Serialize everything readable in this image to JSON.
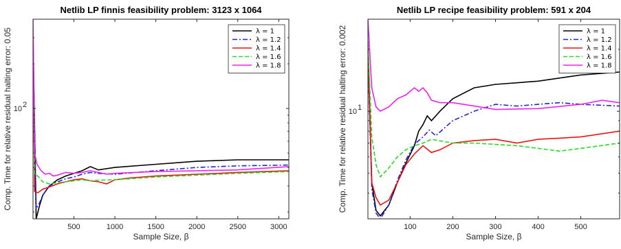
{
  "chart_data": [
    {
      "type": "line",
      "title": "Netlib LP finnis feasibility problem: 3123 x 1064",
      "xlabel": "Sample Size, β",
      "ylabel": "Comp. Time for relative residual halting error: 0.05",
      "xlim": [
        1,
        3123
      ],
      "ylim": [
        18,
        400
      ],
      "yscale": "log",
      "xticks": [
        500,
        1000,
        1500,
        2000,
        2500,
        3000
      ],
      "yticks": [
        {
          "value": 100,
          "label": "10",
          "exp": "2"
        }
      ],
      "grid": false,
      "legend_position": "top-right",
      "series": [
        {
          "name": "λ = 1",
          "color": "#000000",
          "dash": "solid",
          "x": [
            1,
            40,
            80,
            120,
            200,
            300,
            400,
            500,
            600,
            700,
            800,
            1000,
            1500,
            2000,
            2500,
            3123
          ],
          "y": [
            320,
            18,
            22,
            26,
            30,
            33,
            35,
            36.5,
            38,
            40.5,
            38.5,
            40,
            42,
            44,
            45,
            45
          ]
        },
        {
          "name": "λ = 1.2",
          "color": "#1f1fe0",
          "dash": "dashdot",
          "x": [
            1,
            40,
            80,
            120,
            200,
            300,
            400,
            500,
            600,
            700,
            800,
            1000,
            1500,
            2000,
            2500,
            3123
          ],
          "y": [
            250,
            21,
            23,
            26,
            30,
            32,
            33.5,
            34.5,
            36,
            37,
            36.5,
            36,
            38,
            40,
            41,
            41.5
          ]
        },
        {
          "name": "λ = 1.4",
          "color": "#ee1111",
          "dash": "solid",
          "x": [
            1,
            20,
            60,
            120,
            200,
            300,
            400,
            500,
            600,
            700,
            800,
            900,
            1000,
            1200,
            1500,
            2000,
            2500,
            3123
          ],
          "y": [
            230,
            27.5,
            27,
            28.5,
            29.5,
            31,
            32,
            33,
            33.5,
            32.5,
            32,
            31,
            33,
            34,
            35,
            36,
            37,
            38
          ]
        },
        {
          "name": "λ = 1.6",
          "color": "#22dd22",
          "dash": "dashed",
          "x": [
            1,
            20,
            60,
            120,
            200,
            300,
            400,
            500,
            600,
            700,
            800,
            1000,
            1500,
            2000,
            2500,
            3123
          ],
          "y": [
            260,
            36,
            35,
            32,
            31,
            31.5,
            32,
            32.5,
            33,
            32.5,
            32.8,
            33,
            34.5,
            35.5,
            36.5,
            37.5
          ]
        },
        {
          "name": "λ = 1.8",
          "color": "#ee22ee",
          "dash": "solid",
          "x": [
            1,
            20,
            50,
            100,
            150,
            200,
            250,
            300,
            400,
            500,
            600,
            700,
            800,
            900,
            1000,
            1500,
            2000,
            2500,
            3123
          ],
          "y": [
            400,
            50,
            42,
            38,
            36,
            36.5,
            35,
            35.5,
            37,
            36.5,
            37,
            38,
            37,
            36,
            36.5,
            37.5,
            38,
            38.5,
            40.5
          ]
        }
      ]
    },
    {
      "type": "line",
      "title": "Netlib LP recipe feasibility problem: 591 x 204",
      "xlabel": "Sample Size, β",
      "ylabel": "Comp. Time for relative residual halting error: 0.002",
      "xlim": [
        1,
        591
      ],
      "ylim": [
        3.0,
        28
      ],
      "yscale": "log",
      "xticks": [
        100,
        200,
        300,
        400,
        500
      ],
      "yticks": [
        {
          "value": 10,
          "label": "10",
          "exp": "1"
        }
      ],
      "grid": false,
      "legend_position": "top-right",
      "series": [
        {
          "name": "λ = 1",
          "color": "#000000",
          "dash": "solid",
          "x": [
            1,
            10,
            20,
            30,
            50,
            70,
            90,
            110,
            120,
            130,
            140,
            150,
            170,
            200,
            250,
            300,
            400,
            500,
            591
          ],
          "y": [
            20,
            4.5,
            3.3,
            3.1,
            3.5,
            4.5,
            5.6,
            6.8,
            8.0,
            8.6,
            9.5,
            9.0,
            10.0,
            11.5,
            13.0,
            13.5,
            14.0,
            15.0,
            15.5
          ]
        },
        {
          "name": "λ = 1.2",
          "color": "#1f1fe0",
          "dash": "dashdot",
          "x": [
            1,
            10,
            20,
            30,
            50,
            70,
            90,
            110,
            130,
            145,
            160,
            200,
            250,
            300,
            350,
            400,
            450,
            500,
            591
          ],
          "y": [
            18,
            4.2,
            3.2,
            3.0,
            3.5,
            4.6,
            5.8,
            6.9,
            7.5,
            8.1,
            7.6,
            9.0,
            10.0,
            10.8,
            10.6,
            10.8,
            11.0,
            10.8,
            10.6
          ]
        },
        {
          "name": "λ = 1.4",
          "color": "#ee1111",
          "dash": "solid",
          "x": [
            1,
            10,
            20,
            30,
            50,
            70,
            90,
            110,
            130,
            150,
            170,
            200,
            250,
            300,
            350,
            400,
            450,
            500,
            591
          ],
          "y": [
            22,
            4.5,
            3.8,
            3.5,
            3.7,
            4.5,
            5.5,
            6.2,
            6.8,
            6.3,
            6.5,
            7.0,
            7.2,
            7.3,
            7.0,
            7.3,
            7.4,
            7.5,
            8.0
          ]
        },
        {
          "name": "λ = 1.6",
          "color": "#22dd22",
          "dash": "dashed",
          "x": [
            1,
            10,
            20,
            30,
            50,
            70,
            90,
            110,
            130,
            150,
            200,
            250,
            300,
            350,
            400,
            450,
            500,
            591
          ],
          "y": [
            22,
            7.5,
            5.5,
            4.8,
            5.3,
            6.0,
            6.5,
            6.8,
            7.0,
            7.3,
            7.0,
            7.0,
            6.9,
            6.8,
            6.6,
            6.4,
            6.6,
            7.0
          ]
        },
        {
          "name": "λ = 1.8",
          "color": "#ee22ee",
          "dash": "solid",
          "x": [
            1,
            10,
            20,
            30,
            50,
            70,
            90,
            110,
            120,
            130,
            140,
            150,
            170,
            200,
            250,
            300,
            400,
            500,
            550,
            591
          ],
          "y": [
            28,
            13,
            10.5,
            10,
            10.5,
            11.5,
            12.0,
            13.0,
            12.5,
            13.0,
            12.3,
            11.3,
            11.0,
            11.0,
            10.6,
            10.2,
            10.3,
            10.8,
            11.3,
            11.0
          ]
        }
      ]
    }
  ]
}
